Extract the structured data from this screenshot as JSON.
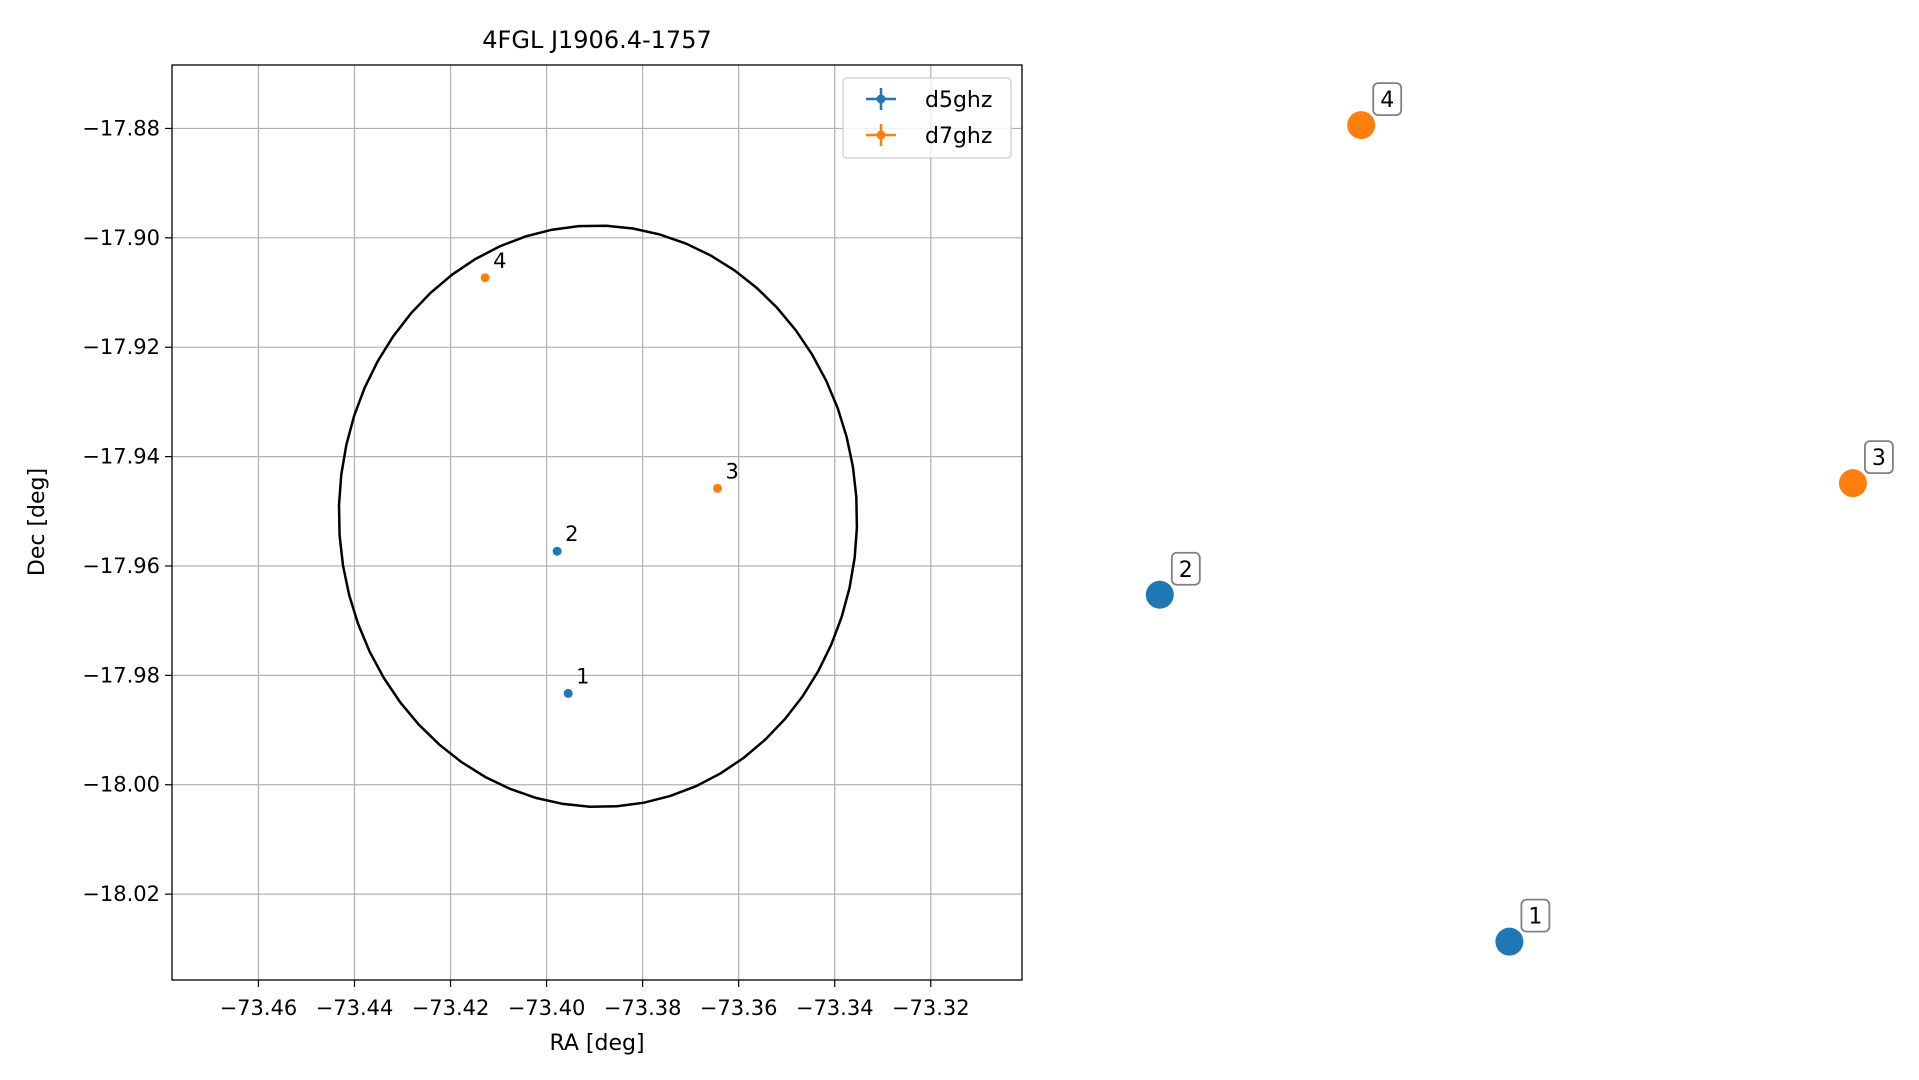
{
  "chart_data": [
    {
      "type": "scatter",
      "title": "4FGL J1906.4-1757",
      "xlabel": "RA [deg]",
      "ylabel": "Dec [deg]",
      "xlim": [
        -73.478,
        -73.301
      ],
      "ylim": [
        -18.0357,
        -17.8684
      ],
      "xticks": [
        -73.46,
        -73.44,
        -73.42,
        -73.4,
        -73.38,
        -73.36,
        -73.34,
        -73.32
      ],
      "xtick_labels": [
        "−73.46",
        "−73.44",
        "−73.42",
        "−73.40",
        "−73.38",
        "−73.36",
        "−73.34",
        "−73.32"
      ],
      "yticks": [
        -17.88,
        -17.9,
        -17.92,
        -17.94,
        -17.96,
        -17.98,
        -18.0,
        -18.02
      ],
      "ytick_labels": [
        "−17.88",
        "−17.90",
        "−17.92",
        "−17.94",
        "−17.96",
        "−17.98",
        "−18.00",
        "−18.02"
      ],
      "grid": true,
      "legend_position": "top-right",
      "series": [
        {
          "name": "d5ghz",
          "color": "#1f77b4",
          "points": [
            {
              "label": "1",
              "x": -73.3955,
              "y": -17.9833
            },
            {
              "label": "2",
              "x": -73.3978,
              "y": -17.9573
            }
          ]
        },
        {
          "name": "d7ghz",
          "color": "#ff7f0e",
          "points": [
            {
              "label": "3",
              "x": -73.3644,
              "y": -17.9458
            },
            {
              "label": "4",
              "x": -73.4128,
              "y": -17.9073
            }
          ]
        }
      ],
      "ellipse": {
        "color": "#000000",
        "center_x": -73.3893,
        "center_y": -17.9509,
        "semi_axis_ra": 0.054,
        "semi_axis_dec": 0.0531,
        "tilt_deg": -14
      }
    },
    {
      "type": "scatter",
      "title": "",
      "axes_visible": false,
      "points": [
        {
          "label": "1",
          "series": "d5ghz",
          "color": "#1f77b4",
          "x": 0.565,
          "y": 0.052
        },
        {
          "label": "2",
          "series": "d5ghz",
          "color": "#1f77b4",
          "x": 0.105,
          "y": 0.425
        },
        {
          "label": "3",
          "series": "d7ghz",
          "color": "#ff7f0e",
          "x": 1.017,
          "y": 0.545
        },
        {
          "label": "4",
          "series": "d7ghz",
          "color": "#ff7f0e",
          "x": 0.37,
          "y": 0.93
        }
      ]
    }
  ]
}
